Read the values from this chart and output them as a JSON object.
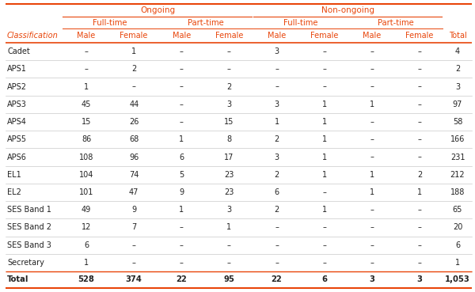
{
  "header_color": "#E8450A",
  "col0_label": "Classification",
  "header_level1_labels": [
    "Ongoing",
    "Non-ongoing"
  ],
  "header_level2_labels": [
    "Full-time",
    "Part-time",
    "Full-time",
    "Part-time"
  ],
  "col_headers": [
    "Male",
    "Female",
    "Male",
    "Female",
    "Male",
    "Female",
    "Male",
    "Female",
    "Total"
  ],
  "rows": [
    [
      "Cadet",
      "–",
      "1",
      "–",
      "–",
      "3",
      "–",
      "–",
      "–",
      "4"
    ],
    [
      "APS1",
      "–",
      "2",
      "–",
      "–",
      "–",
      "–",
      "–",
      "–",
      "2"
    ],
    [
      "APS2",
      "1",
      "–",
      "–",
      "2",
      "–",
      "–",
      "–",
      "–",
      "3"
    ],
    [
      "APS3",
      "45",
      "44",
      "–",
      "3",
      "3",
      "1",
      "1",
      "–",
      "97"
    ],
    [
      "APS4",
      "15",
      "26",
      "–",
      "15",
      "1",
      "1",
      "–",
      "–",
      "58"
    ],
    [
      "APS5",
      "86",
      "68",
      "1",
      "8",
      "2",
      "1",
      "–",
      "–",
      "166"
    ],
    [
      "APS6",
      "108",
      "96",
      "6",
      "17",
      "3",
      "1",
      "–",
      "–",
      "231"
    ],
    [
      "EL1",
      "104",
      "74",
      "5",
      "23",
      "2",
      "1",
      "1",
      "2",
      "212"
    ],
    [
      "EL2",
      "101",
      "47",
      "9",
      "23",
      "6",
      "–",
      "1",
      "1",
      "188"
    ],
    [
      "SES Band 1",
      "49",
      "9",
      "1",
      "3",
      "2",
      "1",
      "–",
      "–",
      "65"
    ],
    [
      "SES Band 2",
      "12",
      "7",
      "–",
      "1",
      "–",
      "–",
      "–",
      "–",
      "20"
    ],
    [
      "SES Band 3",
      "6",
      "–",
      "–",
      "–",
      "–",
      "–",
      "–",
      "–",
      "6"
    ],
    [
      "Secretary",
      "1",
      "–",
      "–",
      "–",
      "–",
      "–",
      "–",
      "–",
      "1"
    ]
  ],
  "total_row": [
    "Total",
    "528",
    "374",
    "22",
    "95",
    "22",
    "6",
    "3",
    "3",
    "1,053"
  ],
  "bg_color": "#ffffff",
  "text_color": "#222222",
  "sep_line_color": "#bbbbbb",
  "thick_line_color": "#E8450A",
  "figw": 6.0,
  "figh": 3.69,
  "dpi": 100
}
